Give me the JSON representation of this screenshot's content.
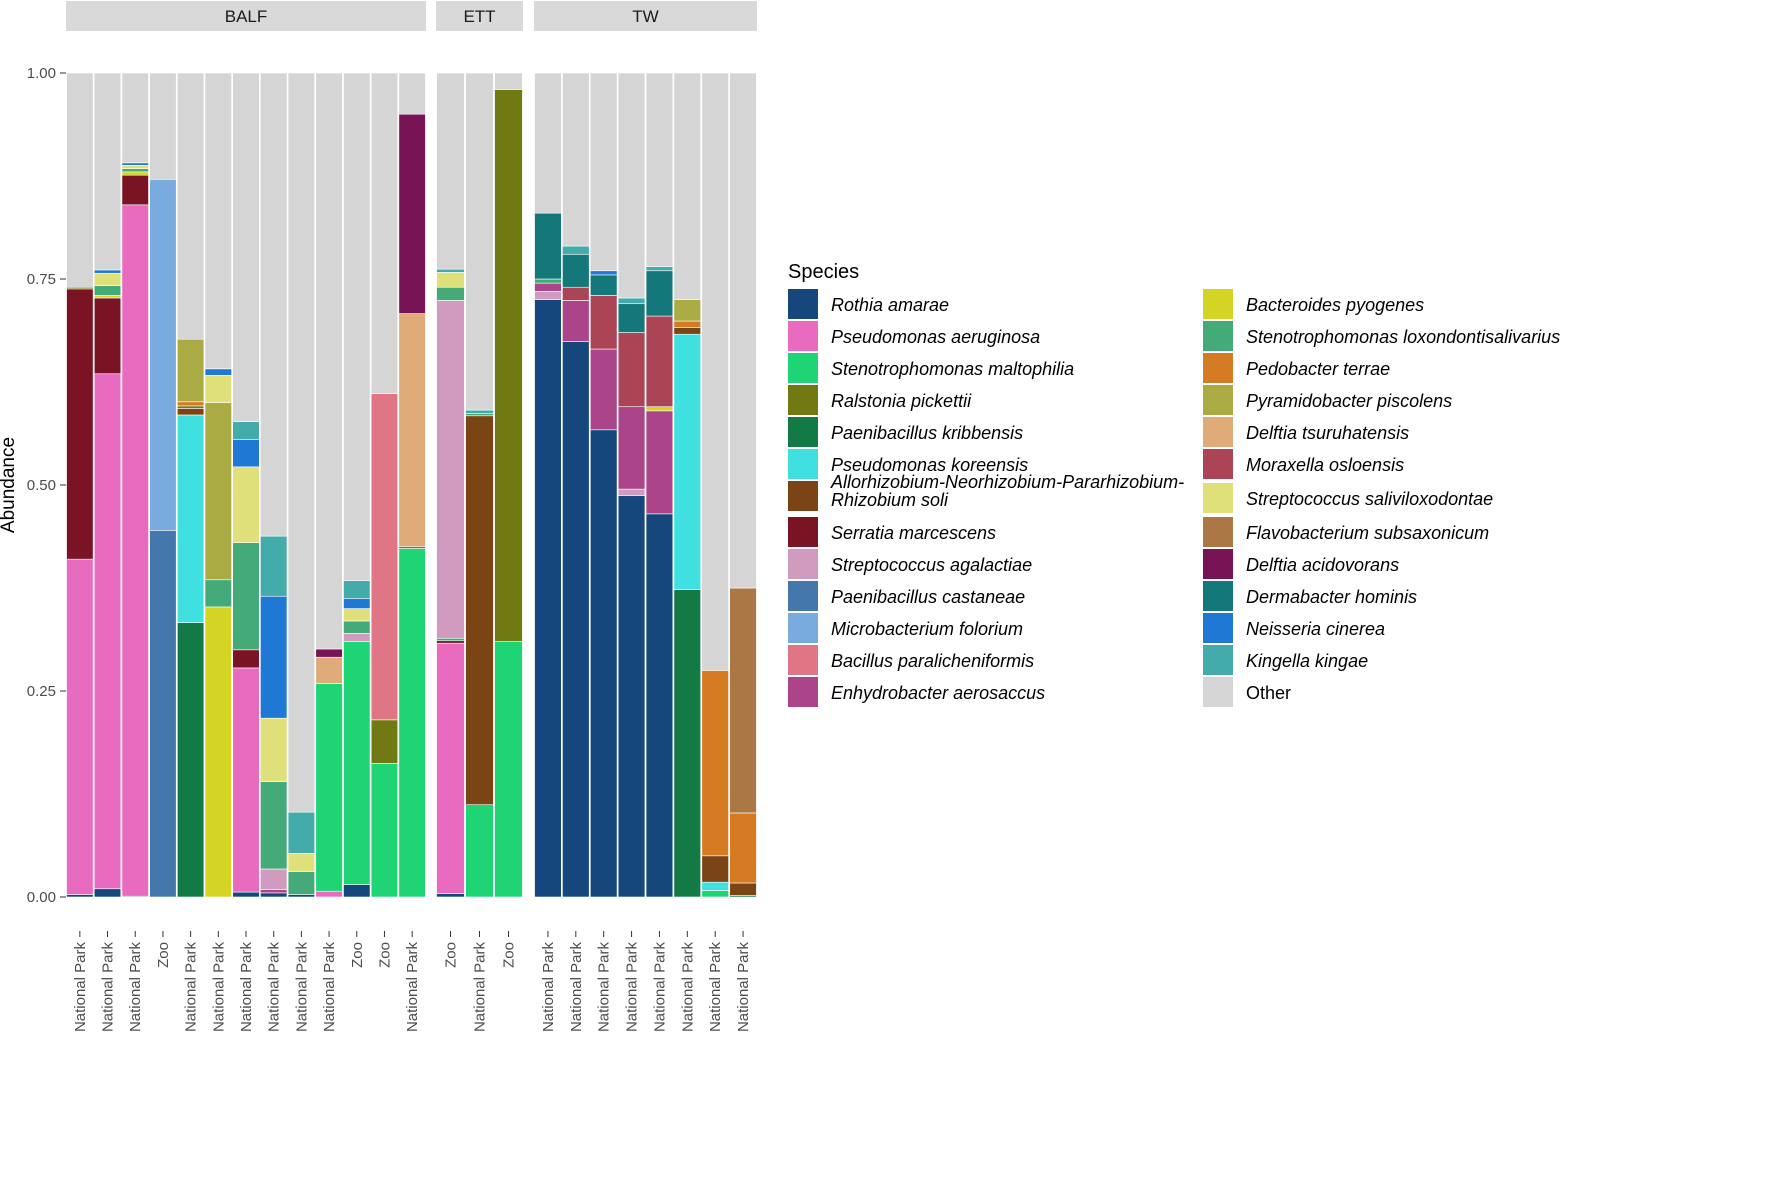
{
  "chart_data": {
    "type": "bar",
    "stacked": true,
    "ylabel": "Abundance",
    "xlabel": "",
    "ylim": [
      0,
      1
    ],
    "yticks": [
      "0.00",
      "0.25",
      "0.50",
      "0.75",
      "1.00"
    ],
    "legend_title": "Species",
    "legend_position": "right",
    "species": [
      {
        "name": "Rothia amarae",
        "color": "#15477c"
      },
      {
        "name": "Pseudomonas aeruginosa",
        "color": "#e96bbf"
      },
      {
        "name": "Stenotrophomonas maltophilia",
        "color": "#1fd475"
      },
      {
        "name": "Ralstonia pickettii",
        "color": "#717913"
      },
      {
        "name": "Paenibacillus kribbensis",
        "color": "#137a45"
      },
      {
        "name": "Pseudomonas koreensis",
        "color": "#40e0e0"
      },
      {
        "name": "Allorhizobium-Neorhizobium-Pararhizobium-Rhizobium soli",
        "color": "#7a4414"
      },
      {
        "name": "Serratia marcescens",
        "color": "#7a1424"
      },
      {
        "name": "Streptococcus agalactiae",
        "color": "#d09bbf"
      },
      {
        "name": "Paenibacillus castaneae",
        "color": "#4478ad"
      },
      {
        "name": "Microbacterium folorium",
        "color": "#7aabde"
      },
      {
        "name": "Bacillus paralicheniformis",
        "color": "#e07585"
      },
      {
        "name": "Enhydrobacter aerosaccus",
        "color": "#ab4488"
      },
      {
        "name": "Bacteroides pyogenes",
        "color": "#d4d424"
      },
      {
        "name": "Stenotrophomonas loxondontisalivarius",
        "color": "#44ab78"
      },
      {
        "name": "Pedobacter terrae",
        "color": "#d47b24"
      },
      {
        "name": "Pyramidobacter piscolens",
        "color": "#abab44"
      },
      {
        "name": "Delftia tsuruhatensis",
        "color": "#dfab78"
      },
      {
        "name": "Moraxella osloensis",
        "color": "#ab4455"
      },
      {
        "name": "Streptococcus saliviloxodontae",
        "color": "#e0e07b"
      },
      {
        "name": "Flavobacterium subsaxonicum",
        "color": "#ab7845"
      },
      {
        "name": "Delftia acidovorans",
        "color": "#781456"
      },
      {
        "name": "Dermabacter hominis",
        "color": "#14787a"
      },
      {
        "name": "Neisseria cinerea",
        "color": "#1f78d4"
      },
      {
        "name": "Kingella kingae",
        "color": "#44abab"
      },
      {
        "name": "Other",
        "color": "#d5d5d5"
      }
    ],
    "panels": [
      {
        "label": "BALF",
        "bars": [
          {
            "category": "National Park",
            "segments": [
              [
                "Rothia amarae",
                0.003
              ],
              [
                "Pseudomonas aeruginosa",
                0.407
              ],
              [
                "Serratia marcescens",
                0.328
              ],
              [
                "Ralstonia pickettii",
                0.002
              ],
              [
                "Other",
                0.26
              ]
            ]
          },
          {
            "category": "National Park",
            "segments": [
              [
                "Rothia amarae",
                0.01
              ],
              [
                "Pseudomonas aeruginosa",
                0.625
              ],
              [
                "Serratia marcescens",
                0.092
              ],
              [
                "Bacteroides pyogenes",
                0.003
              ],
              [
                "Stenotrophomonas loxondontisalivarius",
                0.012
              ],
              [
                "Streptococcus saliviloxodontae",
                0.015
              ],
              [
                "Neisseria cinerea",
                0.004
              ],
              [
                "Other",
                0.239
              ]
            ]
          },
          {
            "category": "National Park",
            "segments": [
              [
                "Rothia amarae",
                0.001
              ],
              [
                "Pseudomonas aeruginosa",
                0.839
              ],
              [
                "Serratia marcescens",
                0.036
              ],
              [
                "Bacteroides pyogenes",
                0.004
              ],
              [
                "Stenotrophomonas loxondontisalivarius",
                0.004
              ],
              [
                "Streptococcus saliviloxodontae",
                0.004
              ],
              [
                "Neisseria cinerea",
                0.003
              ],
              [
                "Other",
                0.109
              ]
            ]
          },
          {
            "category": "Zoo",
            "segments": [
              [
                "Paenibacillus castaneae",
                0.445
              ],
              [
                "Microbacterium folorium",
                0.426
              ],
              [
                "Other",
                0.129
              ]
            ]
          },
          {
            "category": "National Park",
            "segments": [
              [
                "Paenibacillus kribbensis",
                0.333
              ],
              [
                "Pseudomonas koreensis",
                0.252
              ],
              [
                "Allorhizobium-Neorhizobium-Pararhizobium-Rhizobium soli",
                0.008
              ],
              [
                "Ralstonia pickettii",
                0.003
              ],
              [
                "Pedobacter terrae",
                0.005
              ],
              [
                "Pyramidobacter piscolens",
                0.076
              ],
              [
                "Other",
                0.323
              ]
            ]
          },
          {
            "category": "National Park",
            "segments": [
              [
                "Bacteroides pyogenes",
                0.352
              ],
              [
                "Stenotrophomonas loxondontisalivarius",
                0.033
              ],
              [
                "Pyramidobacter piscolens",
                0.215
              ],
              [
                "Streptococcus saliviloxodontae",
                0.033
              ],
              [
                "Neisseria cinerea",
                0.008
              ],
              [
                "Other",
                0.359
              ]
            ]
          },
          {
            "category": "National Park",
            "segments": [
              [
                "Rothia amarae",
                0.006
              ],
              [
                "Pseudomonas aeruginosa",
                0.272
              ],
              [
                "Serratia marcescens",
                0.022
              ],
              [
                "Stenotrophomonas loxondontisalivarius",
                0.13
              ],
              [
                "Streptococcus saliviloxodontae",
                0.092
              ],
              [
                "Neisseria cinerea",
                0.033
              ],
              [
                "Kingella kingae",
                0.022
              ],
              [
                "Other",
                0.423
              ]
            ]
          },
          {
            "category": "National Park",
            "segments": [
              [
                "Rothia amarae",
                0.005
              ],
              [
                "Enhydrobacter aerosaccus",
                0.004
              ],
              [
                "Streptococcus agalactiae",
                0.025
              ],
              [
                "Stenotrophomonas loxondontisalivarius",
                0.106
              ],
              [
                "Streptococcus saliviloxodontae",
                0.077
              ],
              [
                "Neisseria cinerea",
                0.148
              ],
              [
                "Kingella kingae",
                0.073
              ],
              [
                "Other",
                0.562
              ]
            ]
          },
          {
            "category": "National Park",
            "segments": [
              [
                "Rothia amarae",
                0.003
              ],
              [
                "Stenotrophomonas loxondontisalivarius",
                0.028
              ],
              [
                "Streptococcus saliviloxodontae",
                0.022
              ],
              [
                "Kingella kingae",
                0.05
              ],
              [
                "Other",
                0.897
              ]
            ]
          },
          {
            "category": "National Park",
            "segments": [
              [
                "Pseudomonas aeruginosa",
                0.007
              ],
              [
                "Stenotrophomonas maltophilia",
                0.252
              ],
              [
                "Delftia tsuruhatensis",
                0.032
              ],
              [
                "Delftia acidovorans",
                0.01
              ],
              [
                "Other",
                0.699
              ]
            ]
          },
          {
            "category": "Zoo",
            "segments": [
              [
                "Rothia amarae",
                0.015
              ],
              [
                "Stenotrophomonas maltophilia",
                0.295
              ],
              [
                "Streptococcus agalactiae",
                0.01
              ],
              [
                "Stenotrophomonas loxondontisalivarius",
                0.015
              ],
              [
                "Streptococcus saliviloxodontae",
                0.015
              ],
              [
                "Neisseria cinerea",
                0.012
              ],
              [
                "Kingella kingae",
                0.022
              ],
              [
                "Other",
                0.616
              ]
            ]
          },
          {
            "category": "Zoo",
            "segments": [
              [
                "Stenotrophomonas maltophilia",
                0.162
              ],
              [
                "Ralstonia pickettii",
                0.053
              ],
              [
                "Bacillus paralicheniformis",
                0.396
              ],
              [
                "Other",
                0.389
              ]
            ]
          },
          {
            "category": "National Park",
            "segments": [
              [
                "Stenotrophomonas maltophilia",
                0.423
              ],
              [
                "Allorhizobium-Neorhizobium-Pararhizobium-Rhizobium soli",
                0.002
              ],
              [
                "Delftia tsuruhatensis",
                0.283
              ],
              [
                "Delftia acidovorans",
                0.242
              ],
              [
                "Other",
                0.05
              ]
            ]
          }
        ]
      },
      {
        "label": "ETT",
        "bars": [
          {
            "category": "Zoo",
            "segments": [
              [
                "Rothia amarae",
                0.004
              ],
              [
                "Pseudomonas aeruginosa",
                0.304
              ],
              [
                "Serratia marcescens",
                0.003
              ],
              [
                "Stenotrophomonas loxondontisalivarius",
                0.003
              ],
              [
                "Streptococcus agalactiae",
                0.41
              ],
              [
                "Stenotrophomonas loxondontisalivarius",
                0.016
              ],
              [
                "Streptococcus saliviloxodontae",
                0.018
              ],
              [
                "Kingella kingae",
                0.004
              ],
              [
                "Other",
                0.238
              ]
            ]
          },
          {
            "category": "National Park",
            "segments": [
              [
                "Stenotrophomonas maltophilia",
                0.112
              ],
              [
                "Allorhizobium-Neorhizobium-Pararhizobium-Rhizobium soli",
                0.472
              ],
              [
                "Stenotrophomonas loxondontisalivarius",
                0.003
              ],
              [
                "Kingella kingae",
                0.004
              ],
              [
                "Other",
                0.409
              ]
            ]
          },
          {
            "category": "Zoo",
            "segments": [
              [
                "Stenotrophomonas maltophilia",
                0.31
              ],
              [
                "Ralstonia pickettii",
                0.67
              ],
              [
                "Other",
                0.02
              ]
            ]
          }
        ]
      },
      {
        "label": "TW",
        "bars": [
          {
            "category": "National Park",
            "segments": [
              [
                "Rothia amarae",
                0.725
              ],
              [
                "Streptococcus agalactiae",
                0.01
              ],
              [
                "Enhydrobacter aerosaccus",
                0.01
              ],
              [
                "Stenotrophomonas loxondontisalivarius",
                0.005
              ],
              [
                "Dermabacter hominis",
                0.08
              ],
              [
                "Other",
                0.17
              ]
            ]
          },
          {
            "category": "National Park",
            "segments": [
              [
                "Rothia amarae",
                0.674
              ],
              [
                "Enhydrobacter aerosaccus",
                0.05
              ],
              [
                "Moraxella osloensis",
                0.016
              ],
              [
                "Dermabacter hominis",
                0.04
              ],
              [
                "Kingella kingae",
                0.01
              ],
              [
                "Other",
                0.21
              ]
            ]
          },
          {
            "category": "National Park",
            "segments": [
              [
                "Rothia amarae",
                0.567
              ],
              [
                "Enhydrobacter aerosaccus",
                0.098
              ],
              [
                "Moraxella osloensis",
                0.065
              ],
              [
                "Dermabacter hominis",
                0.025
              ],
              [
                "Neisseria cinerea",
                0.005
              ],
              [
                "Other",
                0.24
              ]
            ]
          },
          {
            "category": "National Park",
            "segments": [
              [
                "Rothia amarae",
                0.487
              ],
              [
                "Streptococcus agalactiae",
                0.008
              ],
              [
                "Enhydrobacter aerosaccus",
                0.1
              ],
              [
                "Moraxella osloensis",
                0.09
              ],
              [
                "Dermabacter hominis",
                0.035
              ],
              [
                "Kingella kingae",
                0.007
              ],
              [
                "Other",
                0.273
              ]
            ]
          },
          {
            "category": "National Park",
            "segments": [
              [
                "Rothia amarae",
                0.465
              ],
              [
                "Enhydrobacter aerosaccus",
                0.125
              ],
              [
                "Bacteroides pyogenes",
                0.005
              ],
              [
                "Moraxella osloensis",
                0.11
              ],
              [
                "Dermabacter hominis",
                0.055
              ],
              [
                "Kingella kingae",
                0.005
              ],
              [
                "Other",
                0.235
              ]
            ]
          },
          {
            "category": "National Park",
            "segments": [
              [
                "Paenibacillus kribbensis",
                0.373
              ],
              [
                "Pseudomonas koreensis",
                0.31
              ],
              [
                "Allorhizobium-Neorhizobium-Pararhizobium-Rhizobium soli",
                0.008
              ],
              [
                "Pedobacter terrae",
                0.008
              ],
              [
                "Pyramidobacter piscolens",
                0.026
              ],
              [
                "Other",
                0.275
              ]
            ]
          },
          {
            "category": "National Park",
            "segments": [
              [
                "Stenotrophomonas maltophilia",
                0.008
              ],
              [
                "Pseudomonas koreensis",
                0.01
              ],
              [
                "Allorhizobium-Neorhizobium-Pararhizobium-Rhizobium soli",
                0.032
              ],
              [
                "Pedobacter terrae",
                0.225
              ],
              [
                "Other",
                0.725
              ]
            ]
          },
          {
            "category": "National Park",
            "segments": [
              [
                "Paenibacillus kribbensis",
                0.002
              ],
              [
                "Allorhizobium-Neorhizobium-Pararhizobium-Rhizobium soli",
                0.015
              ],
              [
                "Pedobacter terrae",
                0.085
              ],
              [
                "Flavobacterium subsaxonicum",
                0.273
              ],
              [
                "Other",
                0.625
              ]
            ]
          }
        ]
      }
    ]
  }
}
